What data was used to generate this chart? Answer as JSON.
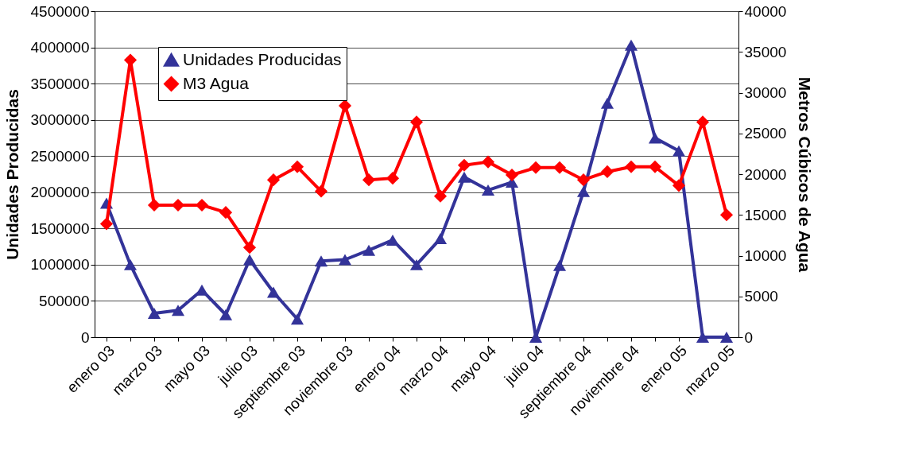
{
  "chart_data": {
    "type": "line",
    "ylabel": "Unidades Producidas",
    "y2label": "Metros Cúbicos de Agua",
    "categories": [
      "enero 03",
      null,
      "marzo 03",
      null,
      "mayo 03",
      null,
      "julio 03",
      null,
      "septiembre 03",
      null,
      "noviembre 03",
      null,
      "enero 04",
      null,
      "marzo 04",
      null,
      "mayo 04",
      null,
      "julio 04",
      null,
      "septiembre 04",
      null,
      "noviembre 04",
      null,
      "enero 05",
      null,
      "marzo 05"
    ],
    "series": [
      {
        "name": "Unidades Producidas",
        "color": "#333399",
        "marker": "triangle",
        "values": [
          1850000,
          1000000,
          330000,
          370000,
          650000,
          310000,
          1070000,
          620000,
          250000,
          1050000,
          1070000,
          1200000,
          1340000,
          1000000,
          1360000,
          2210000,
          2030000,
          2140000,
          0,
          990000,
          2010000,
          3230000,
          4030000,
          2750000,
          2570000,
          0,
          0
        ]
      },
      {
        "name": "M3 Agua",
        "color": "#ff0000",
        "marker": "diamond",
        "axis": "y2",
        "values": [
          13900,
          34000,
          16200,
          16200,
          16200,
          15300,
          11000,
          19300,
          20900,
          17900,
          28400,
          19300,
          19500,
          26400,
          17300,
          21100,
          21500,
          19900,
          20800,
          20800,
          19300,
          20300,
          20900,
          20900,
          18600,
          26400,
          15000
        ]
      }
    ],
    "ylim": [
      0,
      4500000
    ],
    "yticks": [
      0,
      500000,
      1000000,
      1500000,
      2000000,
      2500000,
      3000000,
      3500000,
      4000000,
      4500000
    ],
    "y2lim": [
      0,
      40000
    ],
    "y2ticks": [
      0,
      5000,
      10000,
      15000,
      20000,
      25000,
      30000,
      35000,
      40000
    ],
    "grid": "y",
    "legend": "top left",
    "line_style": "solid"
  }
}
